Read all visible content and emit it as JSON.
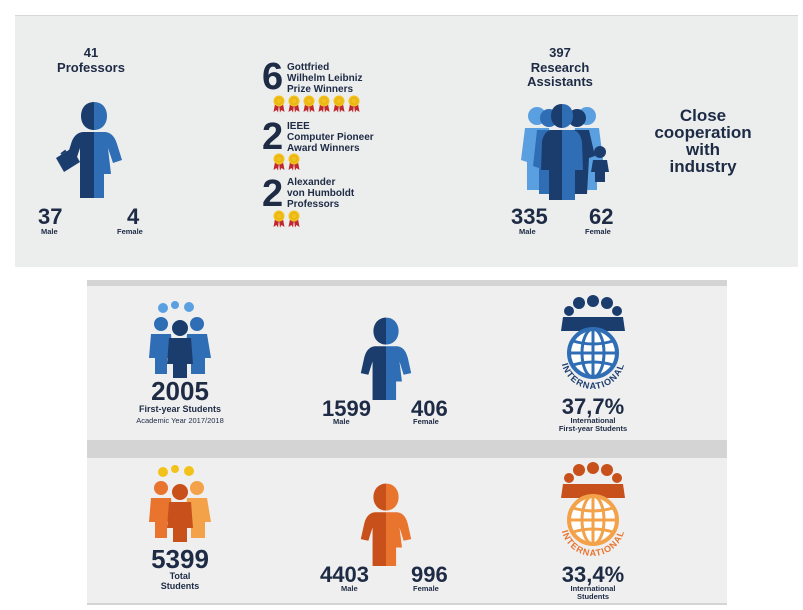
{
  "staff": {
    "professors": {
      "count": "41",
      "label": "Professors",
      "male_count": "37",
      "male_label": "Male",
      "female_count": "4",
      "female_label": "Female"
    },
    "awards": [
      {
        "count": "6",
        "lines": [
          "Gottfried",
          "Wilhelm Leibniz",
          "Prize Winners"
        ],
        "medals": 6
      },
      {
        "count": "2",
        "lines": [
          "IEEE",
          "Computer Pioneer",
          "Award Winners"
        ],
        "medals": 2
      },
      {
        "count": "2",
        "lines": [
          "Alexander",
          "von Humboldt",
          "Professors"
        ],
        "medals": 2
      }
    ],
    "research_assistants": {
      "count": "397",
      "label_line1": "Research",
      "label_line2": "Assistants",
      "male_count": "335",
      "male_label": "Male",
      "female_count": "62",
      "female_label": "Female"
    },
    "industry": {
      "lines": [
        "Close",
        "cooperation",
        "with",
        "industry"
      ]
    }
  },
  "first_year": {
    "count": "2005",
    "label": "First-year Students",
    "sublabel": "Academic Year 2017/2018",
    "male_count": "1599",
    "male_label": "Male",
    "female_count": "406",
    "female_label": "Female",
    "international_badge": "INTERNATIONAL",
    "international_percent": "37,7%",
    "international_label_line1": "International",
    "international_label_line2": "First-year Students"
  },
  "total": {
    "count": "5399",
    "label_line1": "Total",
    "label_line2": "Students",
    "male_count": "4403",
    "male_label": "Male",
    "female_count": "996",
    "female_label": "Female",
    "international_badge": "INTERNATIONAL",
    "international_percent": "33,4%",
    "international_label_line1": "International",
    "international_label_line2": "Students"
  },
  "colors": {
    "navy": "#1e2b45",
    "blue_dark": "#1b3d6e",
    "blue_mid": "#2f6db5",
    "blue_light": "#5aa0e0",
    "orange_dark": "#c8501a",
    "orange_mid": "#e8742e",
    "orange_light": "#f3a24a",
    "gold": "#f2c21b",
    "ribbon_red": "#c0282d"
  },
  "icons": {
    "professor_figure": "person-split-icon",
    "research_group": "people-group-icon",
    "students_group": "people-group-icon",
    "student_figure": "person-split-icon",
    "globe": "globe-icon",
    "medal": "medal-icon"
  }
}
